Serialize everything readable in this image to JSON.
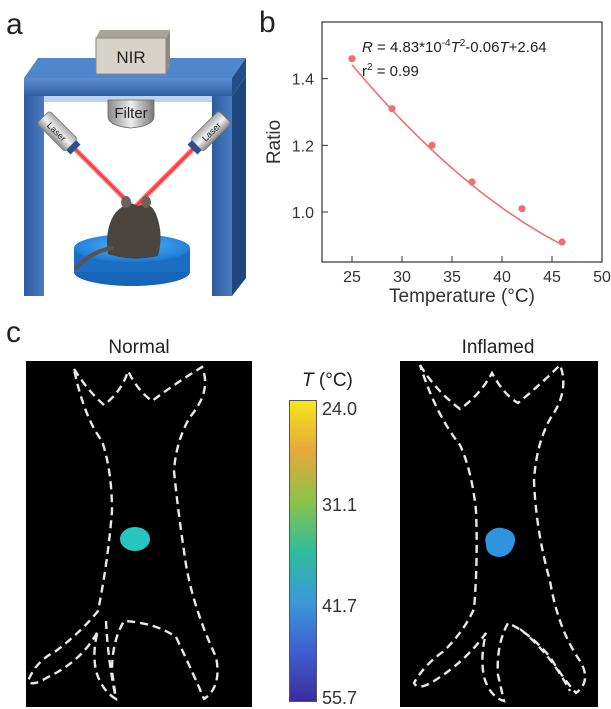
{
  "panels": {
    "a": "a",
    "b": "b",
    "c": "c"
  },
  "setup": {
    "nir_label": "NIR",
    "filter_label": "Filter",
    "laser_left": "Laser",
    "laser_right": "Laser"
  },
  "chart_data": {
    "type": "scatter",
    "xlabel": "Temperature (°C)",
    "ylabel": "Ratio",
    "xlim": [
      22,
      50
    ],
    "ylim": [
      0.85,
      1.57
    ],
    "xticks": [
      25,
      30,
      35,
      40,
      45,
      50
    ],
    "yticks": [
      1.0,
      1.2,
      1.4
    ],
    "series": [
      {
        "points": [
          [
            25,
            1.46
          ],
          [
            29,
            1.31
          ],
          [
            33,
            1.2
          ],
          [
            37,
            1.09
          ],
          [
            42,
            1.01
          ],
          [
            46,
            0.91
          ]
        ]
      }
    ],
    "fit": {
      "type": "quadratic",
      "a": 0.000483,
      "b": -0.06,
      "c": 2.64,
      "equation": "R = 4.83*10^-4 T^2-0.06T+2.64",
      "r2_text": "r² = 0.99",
      "color": "#f07070"
    }
  },
  "equation_parts": {
    "r": "R",
    "eq1": " = 4.83*10",
    "sup1": "-4",
    "t1": "T",
    "sup2": "2",
    "eq2": "-0.06",
    "t2": "T",
    "eq3": "+2.64",
    "r2a": "r",
    "r2sup": "2",
    "r2b": " = 0.99"
  },
  "thermal": {
    "normal_title": "Normal",
    "inflamed_title": "Inflamed",
    "colorbar": {
      "label_t": "T",
      "label_unit": " (°C)",
      "ticks": [
        "24.0",
        "31.1",
        "41.7",
        "55.7"
      ],
      "colors": [
        "#f5e61c",
        "#e6a83a",
        "#8cc34a",
        "#2ebd9b",
        "#3a9ad8",
        "#3f5fd0",
        "#3b2c9c"
      ]
    },
    "normal_spot_color": "#26c6c0",
    "inflamed_spot_color": "#2d94e0"
  }
}
